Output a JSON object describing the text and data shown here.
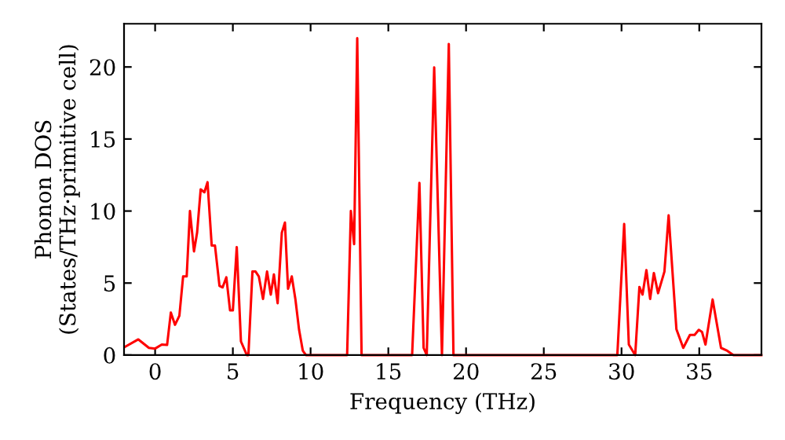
{
  "chart_data": {
    "type": "line",
    "xlabel": "Frequency (THz)",
    "ylabel": "Phonon DOS\n(States/THz·primitive cell)",
    "xlim": [
      -2,
      39
    ],
    "ylim": [
      0,
      23
    ],
    "xticks": [
      0,
      5,
      10,
      15,
      20,
      25,
      30,
      35
    ],
    "yticks": [
      0,
      5,
      10,
      15,
      20
    ],
    "grid": false,
    "marker": "none",
    "line_style": "solid",
    "series": [
      {
        "color": "#ff0000",
        "x": [
          -1.92,
          -1.08,
          -0.4,
          0.0,
          0.43,
          0.77,
          1.01,
          1.28,
          1.56,
          1.8,
          2.03,
          2.24,
          2.5,
          2.7,
          2.93,
          3.17,
          3.37,
          3.64,
          3.85,
          4.14,
          4.34,
          4.58,
          4.82,
          5.0,
          5.25,
          5.52,
          5.9,
          6.0,
          6.26,
          6.46,
          6.67,
          6.94,
          7.2,
          7.44,
          7.64,
          7.88,
          8.15,
          8.35,
          8.55,
          8.79,
          9.02,
          9.26,
          9.5,
          9.7,
          12.35,
          12.59,
          12.8,
          13.0,
          13.28,
          16.53,
          17.0,
          17.27,
          17.47,
          17.95,
          18.45,
          18.89,
          19.19,
          29.73,
          30.17,
          30.47,
          30.88,
          31.15,
          31.35,
          31.6,
          31.84,
          32.08,
          32.35,
          32.76,
          33.03,
          33.53,
          33.97,
          34.4,
          34.7,
          34.97,
          35.18,
          35.4,
          35.86,
          36.4,
          36.8,
          37.2,
          38.99
        ],
        "values": [
          0.58,
          1.09,
          0.5,
          0.45,
          0.73,
          0.7,
          2.95,
          2.1,
          2.73,
          5.46,
          5.46,
          10.0,
          7.2,
          8.5,
          11.5,
          11.3,
          12.0,
          7.6,
          7.6,
          4.8,
          4.7,
          5.4,
          3.1,
          3.1,
          7.5,
          0.95,
          0,
          0,
          5.8,
          5.8,
          5.46,
          3.9,
          5.8,
          4.2,
          5.6,
          3.6,
          8.5,
          9.2,
          4.6,
          5.46,
          3.9,
          1.75,
          0.3,
          0,
          0,
          10.0,
          7.7,
          22.0,
          0,
          0,
          11.95,
          0.5,
          0,
          19.97,
          0,
          21.6,
          0,
          0,
          9.1,
          0.73,
          0,
          4.73,
          4.2,
          5.9,
          3.9,
          5.7,
          4.3,
          5.8,
          9.7,
          1.8,
          0.5,
          1.4,
          1.4,
          1.75,
          1.6,
          0.73,
          3.86,
          0.5,
          0.3,
          0,
          0
        ]
      }
    ]
  }
}
